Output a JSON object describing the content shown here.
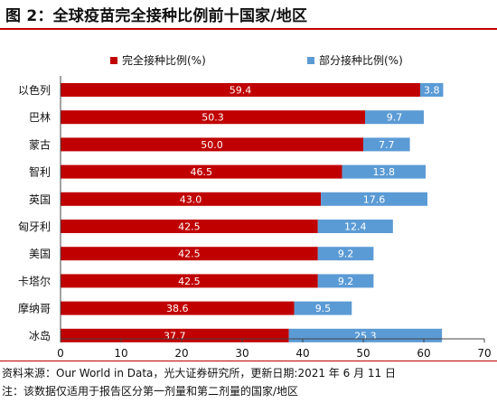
{
  "title": "图 2：全球疫苗完全接种比例前十国家/地区",
  "notes": {
    "source": "资料来源：Our World in Data，光大证券研究所，更新日期:2021 年 6 月 11 日",
    "note": "注：该数据仅适用于报告区分第一剂量和第二剂量的国家/地区"
  },
  "colors": {
    "full": "#c00000",
    "partial": "#5b9bd5",
    "axis": "#444444"
  },
  "chart_data": {
    "type": "bar",
    "orientation": "horizontal",
    "stacked": true,
    "categories": [
      "以色列",
      "巴林",
      "蒙古",
      "智利",
      "英国",
      "匈牙利",
      "美国",
      "卡塔尔",
      "摩纳哥",
      "冰岛"
    ],
    "series": [
      {
        "name": "完全接种比例(%)",
        "values": [
          59.4,
          50.3,
          50.0,
          46.5,
          43.0,
          42.5,
          42.5,
          42.5,
          38.6,
          37.7
        ],
        "labels": [
          "59.4",
          "50.3",
          "50.0",
          "46.5",
          "43.0",
          "42.5",
          "42.5",
          "42.5",
          "38.6",
          "37.7"
        ]
      },
      {
        "name": "部分接种比例(%)",
        "values": [
          3.8,
          9.7,
          7.7,
          13.8,
          17.6,
          12.4,
          9.2,
          9.2,
          9.5,
          25.3
        ],
        "labels": [
          "3.8",
          "9.7",
          "7.7",
          "13.8",
          "17.6",
          "12.4",
          "9.2",
          "9.2",
          "9.5",
          "25.3"
        ]
      }
    ],
    "xlim": [
      0,
      70
    ],
    "xticks": [
      "0",
      "10",
      "20",
      "30",
      "40",
      "50",
      "60",
      "70"
    ],
    "legend_position": "top",
    "grid": false
  }
}
